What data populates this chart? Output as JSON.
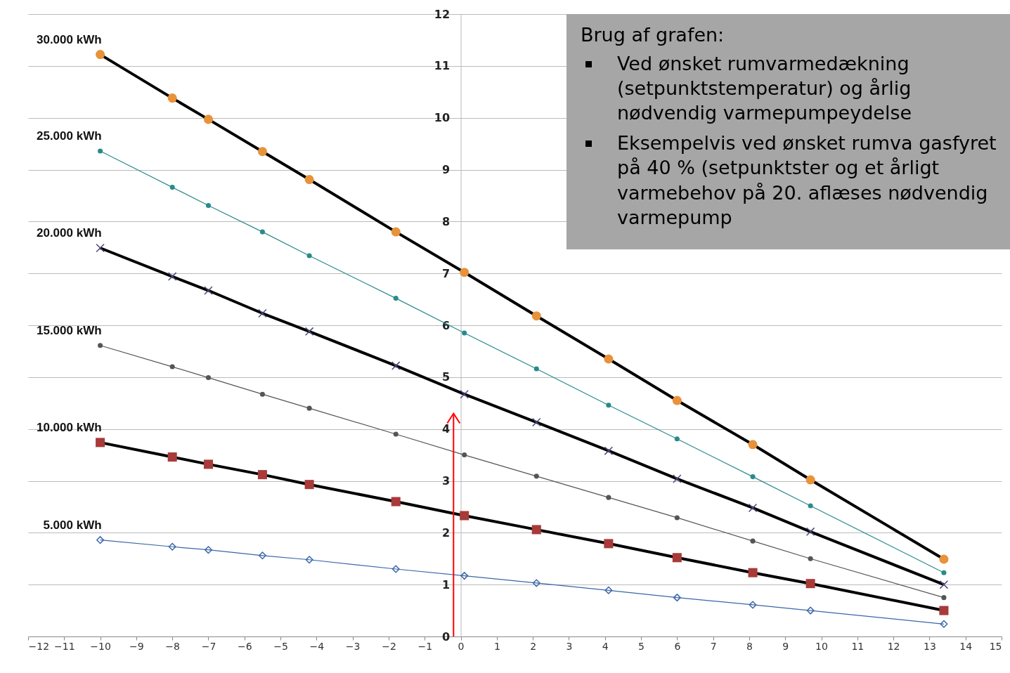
{
  "chart_data": {
    "type": "line",
    "xlim": [
      -12,
      15
    ],
    "ylim": [
      0,
      12
    ],
    "xticks": [
      -12,
      -11,
      -10,
      -9,
      -8,
      -7,
      -6,
      -5,
      -4,
      -3,
      -2,
      -1,
      0,
      1,
      2,
      3,
      4,
      5,
      6,
      7,
      8,
      9,
      10,
      11,
      12,
      13,
      14,
      15
    ],
    "yticks": [
      0,
      1,
      2,
      3,
      4,
      5,
      6,
      7,
      8,
      9,
      10,
      11,
      12
    ],
    "grid": "y",
    "x": [
      -10,
      -8,
      -7,
      -5.5,
      -4.2,
      -1.8,
      0.1,
      2.1,
      4.1,
      6,
      8.1,
      9.7,
      13.4
    ],
    "annotations": [
      "Brug af grafen:",
      "Ved ønsket rumvarmedækning (setpunktstemperatur) og årlig nødvendig varmepumpeydelse",
      "Eksempelvis ved ønsket rumva gasfyret på 40 % (setpunktster og et årligt varmebehov på 20. aflæses nødvendig varmepump"
    ],
    "series": [
      {
        "name": "30.000 kWh",
        "color": "#e8923a",
        "marker": "circle",
        "values": [
          11.22,
          10.38,
          9.97,
          9.35,
          8.81,
          7.8,
          7.02,
          6.18,
          5.35,
          4.55,
          3.7,
          3.02,
          1.49
        ]
      },
      {
        "name": "25.000 kWh",
        "color": "#2a8a8a",
        "marker": "circle",
        "values": [
          9.36,
          8.66,
          8.31,
          7.8,
          7.34,
          6.52,
          5.85,
          5.16,
          4.46,
          3.81,
          3.08,
          2.52,
          1.23
        ]
      },
      {
        "name": "20.000 kWh",
        "color": "#4a4a7a",
        "marker": "cross",
        "values": [
          7.49,
          6.94,
          6.67,
          6.23,
          5.88,
          5.22,
          4.67,
          4.13,
          3.58,
          3.04,
          2.48,
          2.02,
          1.0
        ]
      },
      {
        "name": "15.000 kWh",
        "color": "#555555",
        "marker": "circle",
        "values": [
          5.61,
          5.2,
          4.99,
          4.67,
          4.4,
          3.9,
          3.5,
          3.09,
          2.68,
          2.29,
          1.84,
          1.5,
          0.75
        ]
      },
      {
        "name": "10.000 kWh",
        "color": "#a83a3a",
        "marker": "square",
        "values": [
          3.74,
          3.46,
          3.32,
          3.12,
          2.93,
          2.6,
          2.33,
          2.06,
          1.79,
          1.52,
          1.23,
          1.02,
          0.5
        ]
      },
      {
        "name": "5.000 kWh",
        "color": "#3a66a8",
        "marker": "diamond",
        "values": [
          1.86,
          1.73,
          1.67,
          1.56,
          1.48,
          1.3,
          1.17,
          1.03,
          0.89,
          0.75,
          0.61,
          0.5,
          0.24
        ]
      }
    ]
  }
}
